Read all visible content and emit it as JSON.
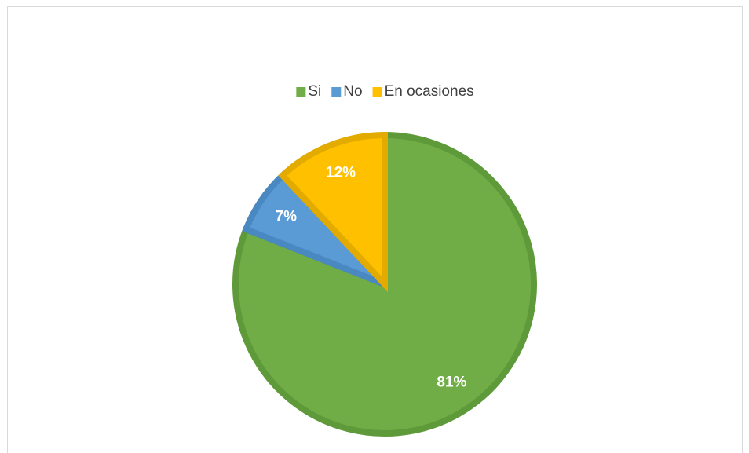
{
  "chart_data": {
    "type": "pie",
    "categories": [
      "Si",
      "No",
      "En ocasiones"
    ],
    "values": [
      81,
      7,
      12
    ],
    "value_labels": [
      "81%",
      "7%",
      "12%"
    ],
    "colors": [
      "#70ad47",
      "#5b9bd5",
      "#ffc000"
    ],
    "border_colors": [
      "#5e9a3a",
      "#4a88c2",
      "#e3ab00"
    ],
    "legend": "top"
  }
}
